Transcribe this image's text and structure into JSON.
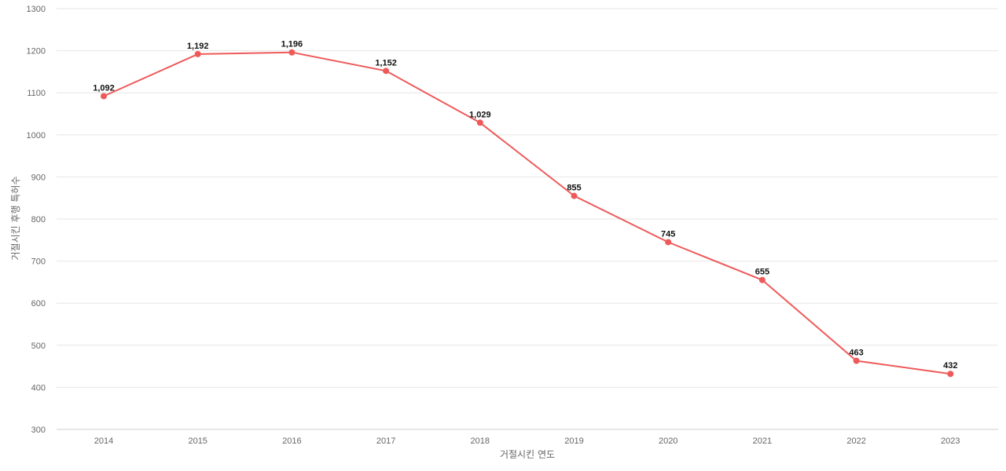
{
  "chart_data": {
    "type": "line",
    "title": "",
    "xlabel": "거절시킨 연도",
    "ylabel": "거절시킨 후행 특허수",
    "categories": [
      "2014",
      "2015",
      "2016",
      "2017",
      "2018",
      "2019",
      "2020",
      "2021",
      "2022",
      "2023"
    ],
    "series": [
      {
        "values": [
          1092,
          1192,
          1196,
          1152,
          1029,
          855,
          745,
          655,
          463,
          432
        ],
        "labels": [
          "1,092",
          "1,192",
          "1,196",
          "1,152",
          "1,029",
          "855",
          "745",
          "655",
          "463",
          "432"
        ],
        "color": "#ee5a5a"
      }
    ],
    "ylim": [
      300,
      1300
    ],
    "yticks": [
      "300",
      "400",
      "500",
      "600",
      "700",
      "800",
      "900",
      "1000",
      "1100",
      "1200",
      "1300"
    ],
    "grid": true,
    "legend": "none"
  }
}
